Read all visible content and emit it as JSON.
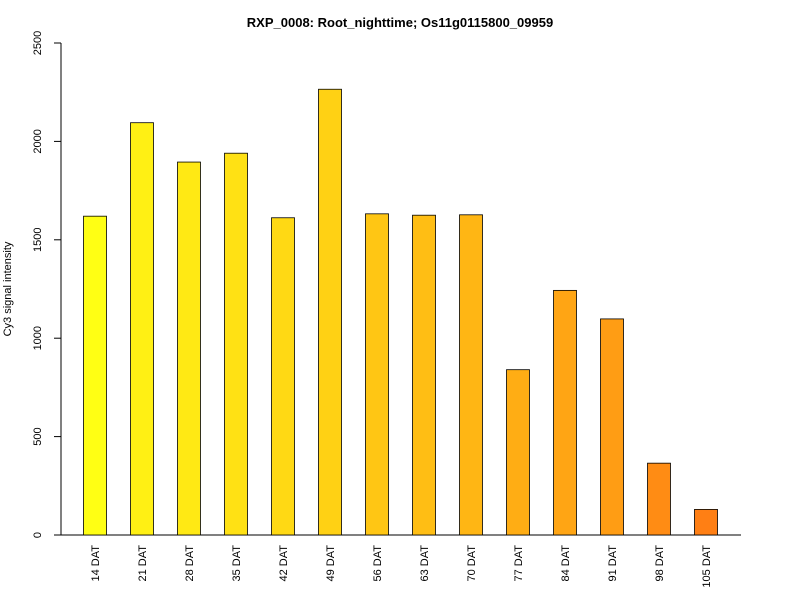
{
  "chart_data": {
    "type": "bar",
    "title": "RXP_0008: Root_nighttime; Os11g0115800_09959",
    "xlabel": "",
    "ylabel": "Cy3 signal intensity",
    "ylim": [
      0,
      2500
    ],
    "yticks": [
      0,
      500,
      1000,
      1500,
      2000,
      2500
    ],
    "categories": [
      "14 DAT",
      "21 DAT",
      "28 DAT",
      "35 DAT",
      "42 DAT",
      "49 DAT",
      "56 DAT",
      "63 DAT",
      "70 DAT",
      "77 DAT",
      "84 DAT",
      "91 DAT",
      "98 DAT",
      "105 DAT"
    ],
    "values": [
      1620,
      2095,
      1895,
      1940,
      1612,
      2265,
      1632,
      1625,
      1627,
      840,
      1243,
      1098,
      365,
      130
    ],
    "colors": [
      "#ffff14",
      "#fff014",
      "#ffe914",
      "#ffe114",
      "#ffd914",
      "#ffd114",
      "#ffc614",
      "#ffbe14",
      "#ffb614",
      "#ffad14",
      "#ffa514",
      "#ff9d14",
      "#ff8c14",
      "#ff7f14"
    ],
    "grid": false,
    "legend": "none"
  }
}
